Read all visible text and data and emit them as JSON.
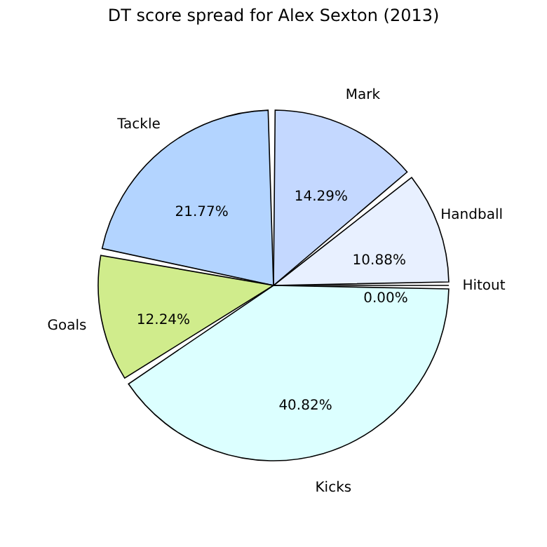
{
  "chart_data": {
    "type": "pie",
    "title": "DT score spread for Alex Sexton (2013)",
    "categories": [
      "Hitout",
      "Handball",
      "Mark",
      "Tackle",
      "Goals",
      "Kicks"
    ],
    "values": [
      0.0,
      10.88,
      14.29,
      21.77,
      12.24,
      40.82
    ],
    "value_labels": [
      "0.00%",
      "10.88%",
      "14.29%",
      "21.77%",
      "12.24%",
      "40.82%"
    ],
    "colors": [
      "#f4f8ff",
      "#e8f0ff",
      "#c4d8ff",
      "#b3d4ff",
      "#d0ec8c",
      "#dcffff"
    ],
    "legend": false
  }
}
